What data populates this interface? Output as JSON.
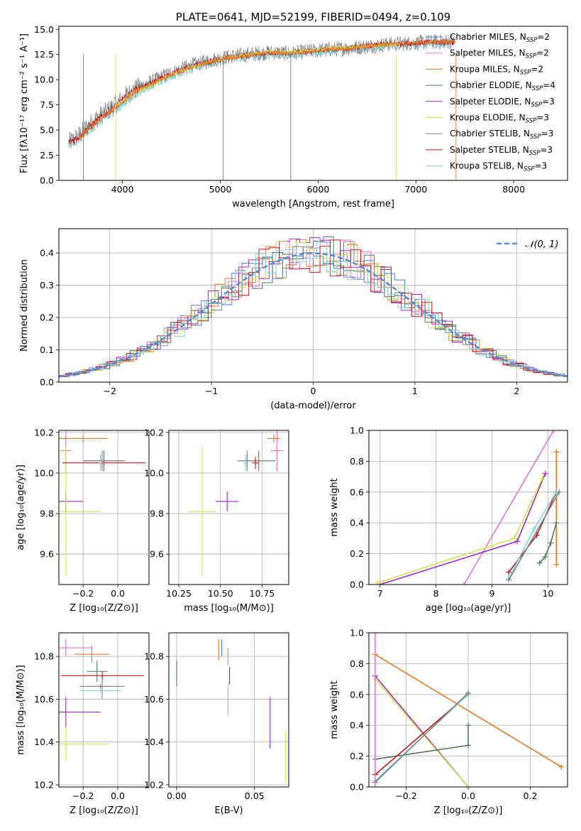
{
  "colors": {
    "chabrier_miles": "#4a7fd0",
    "salpeter_miles": "#e377c2",
    "kroupa_miles": "#e07b29",
    "chabrier_elodie": "#4f7a5a",
    "salpeter_elodie": "#9b2dc4",
    "kroupa_elodie": "#d4e157",
    "chabrier_stelib": "#7f7f7f",
    "salpeter_stelib": "#c0191f",
    "kroupa_stelib": "#7fd3dd",
    "normal": "#5a8ad6",
    "grid": "#b0b0b0"
  },
  "chart_data": [
    {
      "id": "spectrum",
      "type": "line",
      "title": "PLATE=0641, MJD=52199, FIBERID=0494, z=0.109",
      "xlabel": "wavelength [Angstrom, rest frame]",
      "ylabel": "Flux [fλ10⁻¹⁷ erg cm⁻² s⁻¹ A⁻¹]",
      "xlim": [
        3350,
        8550
      ],
      "ylim": [
        0,
        15.3
      ],
      "xticks": [
        4000,
        5000,
        6000,
        7000,
        8000
      ],
      "yticks": [
        0.0,
        2.5,
        5.0,
        7.5,
        10.0,
        12.5,
        15.0
      ],
      "grid": false,
      "legend_position": "top-right",
      "legend": [
        {
          "label": "Chabrier MILES, N",
          "sub": "SSP",
          "tail": "=2",
          "color_key": "chabrier_miles"
        },
        {
          "label": "Salpeter MILES, N",
          "sub": "SSP",
          "tail": "=2",
          "color_key": "salpeter_miles"
        },
        {
          "label": "Kroupa MILES, N",
          "sub": "SSP",
          "tail": "=2",
          "color_key": "kroupa_miles"
        },
        {
          "label": "Chabrier ELODIE, N",
          "sub": "SSP",
          "tail": "=4",
          "color_key": "chabrier_elodie"
        },
        {
          "label": "Salpeter ELODIE, N",
          "sub": "SSP",
          "tail": "=3",
          "color_key": "salpeter_elodie"
        },
        {
          "label": "Kroupa ELODIE, N",
          "sub": "SSP",
          "tail": "=3",
          "color_key": "kroupa_elodie"
        },
        {
          "label": "Chabrier STELIB, N",
          "sub": "SSP",
          "tail": "=3",
          "color_key": "chabrier_stelib"
        },
        {
          "label": "Salpeter STELIB, N",
          "sub": "SSP",
          "tail": "=3",
          "color_key": "salpeter_stelib"
        },
        {
          "label": "Kroupa STELIB, N",
          "sub": "SSP",
          "tail": "=3",
          "color_key": "kroupa_stelib"
        }
      ],
      "series": [
        {
          "name": "Chabrier STELIB",
          "color_key": "chabrier_stelib",
          "x": [
            3450,
            3550,
            3700,
            3850,
            3950,
            4100,
            4300,
            4500,
            4700,
            4900,
            5100,
            5300,
            5500,
            5700,
            5900,
            6100,
            6300,
            6500,
            6700,
            6900,
            7100,
            7300,
            7400
          ],
          "y": [
            3.7,
            4.4,
            5.9,
            6.9,
            7.7,
            8.9,
            9.8,
            10.7,
            11.4,
            11.9,
            12.3,
            12.5,
            12.7,
            12.6,
            12.8,
            13.0,
            13.1,
            13.3,
            13.5,
            13.6,
            13.7,
            13.8,
            13.8
          ]
        },
        {
          "name": "Kroupa STELIB",
          "color_key": "kroupa_stelib",
          "x": [
            3450,
            3550,
            3700,
            3850,
            3950,
            4100,
            4300,
            4500,
            4700,
            4900,
            5100,
            5300,
            5500,
            5700,
            5900,
            6100,
            6300,
            6500,
            6700,
            6900,
            7100,
            7300,
            7400
          ],
          "y": [
            3.6,
            4.1,
            5.4,
            6.5,
            7.1,
            8.5,
            9.4,
            10.4,
            11.1,
            11.7,
            12.1,
            12.3,
            12.6,
            12.5,
            12.7,
            12.9,
            13.0,
            13.2,
            13.4,
            13.5,
            13.6,
            13.6,
            13.6
          ]
        },
        {
          "name": "Salpeter STELIB",
          "color_key": "salpeter_stelib",
          "x": [
            3450,
            3550,
            3700,
            3850,
            3950,
            4100,
            4300,
            4500,
            4700,
            4900,
            5100,
            5300,
            5500,
            5700,
            5900,
            6100,
            6300,
            6500,
            6700,
            6900,
            7100,
            7300,
            7400
          ],
          "y": [
            3.8,
            4.3,
            5.6,
            6.8,
            7.5,
            8.8,
            9.7,
            10.6,
            11.3,
            11.8,
            12.2,
            12.4,
            12.7,
            12.6,
            12.8,
            13.0,
            13.1,
            13.3,
            13.5,
            13.6,
            13.7,
            13.7,
            13.7
          ]
        },
        {
          "name": "Kroupa ELODIE",
          "color_key": "kroupa_elodie",
          "x": [
            3900,
            4100,
            4300,
            4500,
            4700,
            4900,
            5100,
            5300,
            5500,
            5700,
            5900,
            6100,
            6300,
            6500,
            6700,
            6800
          ],
          "y": [
            7.0,
            8.6,
            9.5,
            10.5,
            11.2,
            11.8,
            12.2,
            12.5,
            12.8,
            12.7,
            12.9,
            13.1,
            13.2,
            13.3,
            13.4,
            13.5
          ]
        },
        {
          "name": "Kroupa MILES",
          "color_key": "kroupa_miles",
          "x": [
            3550,
            3700,
            3850,
            3950,
            4100,
            4300,
            4500,
            4700,
            4900,
            5100,
            5300,
            5500,
            5700,
            5900,
            6100,
            6300,
            6500,
            6700,
            6900,
            7100,
            7300,
            7400
          ],
          "y": [
            4.2,
            5.5,
            6.7,
            7.3,
            8.7,
            9.6,
            10.5,
            11.2,
            11.8,
            12.2,
            12.4,
            12.7,
            12.6,
            12.8,
            13.0,
            13.1,
            13.3,
            13.5,
            13.6,
            13.7,
            13.8,
            13.8
          ]
        }
      ]
    },
    {
      "id": "residuals",
      "type": "line",
      "xlabel": "(data-model)/error",
      "ylabel": "Normed distribution",
      "xlim": [
        -2.5,
        2.5
      ],
      "ylim": [
        0,
        0.475
      ],
      "xticks": [
        -2,
        -1,
        0,
        1,
        2
      ],
      "yticks": [
        0.0,
        0.1,
        0.2,
        0.3,
        0.4
      ],
      "grid": true,
      "legend_position": "top-right",
      "legend_label": "𝒩(0, 1)",
      "normal": {
        "mu": 0,
        "sigma": 1
      }
    },
    {
      "id": "age_vs_Z",
      "type": "scatter",
      "xlabel": "Z [log₁₀(Z/Z⊙)]",
      "ylabel": "age  [log₁₀(age/yr)]",
      "xlim": [
        -0.34,
        0.18
      ],
      "ylim": [
        9.45,
        10.21
      ],
      "xticks": [
        -0.2,
        0.0
      ],
      "yticks": [
        9.6,
        9.8,
        10.0,
        10.2
      ],
      "grid": true,
      "points": [
        {
          "color_key": "chabrier_miles",
          "x": -0.1,
          "y": 10.06,
          "xerr": 0.01,
          "yerr": 0.03
        },
        {
          "color_key": "salpeter_miles",
          "x": -0.3,
          "y": 10.11,
          "xerr": 0.03,
          "yerr": 0.1
        },
        {
          "color_key": "kroupa_miles",
          "x": -0.2,
          "y": 10.17,
          "xerr": 0.14,
          "yerr": 0.02
        },
        {
          "color_key": "chabrier_elodie",
          "x": -0.08,
          "y": 10.06,
          "xerr": 0.12,
          "yerr": 0.05
        },
        {
          "color_key": "salpeter_elodie",
          "x": -0.3,
          "y": 9.86,
          "xerr": 0.1,
          "yerr": 0.05
        },
        {
          "color_key": "kroupa_elodie",
          "x": -0.3,
          "y": 9.81,
          "xerr": 0.2,
          "yerr": 0.32
        },
        {
          "color_key": "chabrier_stelib",
          "x": -0.09,
          "y": 10.06,
          "xerr": 0.1,
          "yerr": 0.05
        },
        {
          "color_key": "salpeter_stelib",
          "x": -0.08,
          "y": 10.05,
          "xerr": 0.24,
          "yerr": 0.01
        },
        {
          "color_key": "kroupa_stelib",
          "x": -0.1,
          "y": 10.05,
          "xerr": 0.01,
          "yerr": 0.04
        }
      ]
    },
    {
      "id": "age_vs_mass",
      "type": "scatter",
      "xlabel": "mass [log₁₀(M/M⊙)]",
      "xlim": [
        10.19,
        10.91
      ],
      "ylim": [
        9.45,
        10.21
      ],
      "xticks": [
        10.25,
        10.5,
        10.75
      ],
      "yticks": [
        9.6,
        9.8,
        10.0,
        10.2
      ],
      "grid": true,
      "points": [
        {
          "color_key": "chabrier_miles",
          "x": 10.66,
          "y": 10.06,
          "xerr": 0.01,
          "yerr": 0.03
        },
        {
          "color_key": "salpeter_miles",
          "x": 10.84,
          "y": 10.11,
          "xerr": 0.04,
          "yerr": 0.1
        },
        {
          "color_key": "kroupa_miles",
          "x": 10.82,
          "y": 10.17,
          "xerr": 0.04,
          "yerr": 0.02
        },
        {
          "color_key": "chabrier_elodie",
          "x": 10.73,
          "y": 10.06,
          "xerr": 0.1,
          "yerr": 0.05
        },
        {
          "color_key": "salpeter_elodie",
          "x": 10.54,
          "y": 9.86,
          "xerr": 0.07,
          "yerr": 0.05
        },
        {
          "color_key": "kroupa_elodie",
          "x": 10.39,
          "y": 9.81,
          "xerr": 0.08,
          "yerr": 0.32
        },
        {
          "color_key": "chabrier_stelib",
          "x": 10.66,
          "y": 10.06,
          "xerr": 0.06,
          "yerr": 0.05
        },
        {
          "color_key": "salpeter_stelib",
          "x": 10.71,
          "y": 10.05,
          "xerr": 0.02,
          "yerr": 0.03
        },
        {
          "color_key": "kroupa_stelib",
          "x": 10.65,
          "y": 10.05,
          "xerr": 0.01,
          "yerr": 0.04
        }
      ]
    },
    {
      "id": "weight_vs_age",
      "type": "line",
      "xlabel": "age  [log₁₀(age/yr)]",
      "ylabel": "mass weight",
      "xlim": [
        6.8,
        10.35
      ],
      "ylim": [
        0,
        1.0
      ],
      "xticks": [
        7,
        8,
        9,
        10
      ],
      "yticks": [
        0.0,
        0.2,
        0.4,
        0.6,
        0.8,
        1.0
      ],
      "grid": true,
      "series": [
        {
          "color_key": "salpeter_miles",
          "x": [
            8.5,
            10.1
          ],
          "y": [
            0.0,
            1.0
          ]
        },
        {
          "color_key": "kroupa_miles",
          "x": [
            10.15,
            10.15
          ],
          "y": [
            0.13,
            0.86
          ]
        },
        {
          "color_key": "salpeter_elodie",
          "x": [
            7.0,
            9.45,
            9.95
          ],
          "y": [
            0.0,
            0.28,
            0.72
          ]
        },
        {
          "color_key": "kroupa_elodie",
          "x": [
            6.95,
            9.4,
            9.9
          ],
          "y": [
            0.01,
            0.3,
            0.69
          ]
        },
        {
          "color_key": "chabrier_elodie",
          "x": [
            9.85,
            9.95,
            10.05,
            10.15
          ],
          "y": [
            0.14,
            0.18,
            0.27,
            0.4
          ]
        },
        {
          "color_key": "salpeter_stelib",
          "x": [
            9.3,
            9.8,
            10.15
          ],
          "y": [
            0.08,
            0.32,
            0.6
          ]
        },
        {
          "color_key": "kroupa_stelib",
          "x": [
            9.3,
            9.75,
            10.15
          ],
          "y": [
            0.04,
            0.36,
            0.6
          ]
        },
        {
          "color_key": "chabrier_stelib",
          "x": [
            9.3,
            10.2
          ],
          "y": [
            0.03,
            0.6
          ]
        }
      ]
    },
    {
      "id": "mass_vs_Z",
      "type": "scatter",
      "xlabel": "Z [log₁₀(Z/Z⊙)]",
      "ylabel": "mass [log₁₀(M/M⊙)]",
      "xlim": [
        -0.34,
        0.18
      ],
      "ylim": [
        10.19,
        10.91
      ],
      "xticks": [
        -0.2,
        0.0
      ],
      "yticks": [
        10.2,
        10.4,
        10.6,
        10.8
      ],
      "grid": true,
      "points": [
        {
          "color_key": "chabrier_miles",
          "x": -0.1,
          "y": 10.66,
          "xerr": 0.01,
          "yerr": 0.01
        },
        {
          "color_key": "salpeter_miles",
          "x": -0.3,
          "y": 10.84,
          "xerr": 0.15,
          "yerr": 0.04
        },
        {
          "color_key": "kroupa_miles",
          "x": -0.15,
          "y": 10.81,
          "xerr": 0.1,
          "yerr": 0.04
        },
        {
          "color_key": "chabrier_elodie",
          "x": -0.12,
          "y": 10.73,
          "xerr": 0.06,
          "yerr": 0.05
        },
        {
          "color_key": "salpeter_elodie",
          "x": -0.3,
          "y": 10.54,
          "xerr": 0.2,
          "yerr": 0.07
        },
        {
          "color_key": "kroupa_elodie",
          "x": -0.3,
          "y": 10.39,
          "xerr": 0.25,
          "yerr": 0.08
        },
        {
          "color_key": "chabrier_stelib",
          "x": -0.09,
          "y": 10.66,
          "xerr": 0.13,
          "yerr": 0.06
        },
        {
          "color_key": "salpeter_stelib",
          "x": -0.09,
          "y": 10.71,
          "xerr": 0.24,
          "yerr": 0.02
        },
        {
          "color_key": "kroupa_stelib",
          "x": -0.1,
          "y": 10.64,
          "xerr": 0.12,
          "yerr": 0.01
        }
      ]
    },
    {
      "id": "mass_vs_ebv",
      "type": "scatter",
      "xlabel": "E(B-V)",
      "xlim": [
        -0.005,
        0.072
      ],
      "ylim": [
        10.19,
        10.91
      ],
      "xticks": [
        0.0,
        0.05
      ],
      "yticks": [
        10.2,
        10.4,
        10.6,
        10.8
      ],
      "grid": true,
      "points": [
        {
          "color_key": "chabrier_miles",
          "x": 0.029,
          "y": 10.84,
          "xerr": 0.0,
          "yerr": 0.04
        },
        {
          "color_key": "salpeter_miles",
          "x": 0.033,
          "y": 10.8,
          "xerr": 0.0,
          "yerr": 0.04
        },
        {
          "color_key": "kroupa_miles",
          "x": 0.027,
          "y": 10.83,
          "xerr": 0.0,
          "yerr": 0.05
        },
        {
          "color_key": "chabrier_elodie",
          "x": 0.0,
          "y": 10.72,
          "xerr": 0.0,
          "yerr": 0.06
        },
        {
          "color_key": "salpeter_elodie",
          "x": 0.06,
          "y": 10.49,
          "xerr": 0.0,
          "yerr": 0.12
        },
        {
          "color_key": "kroupa_elodie",
          "x": 0.07,
          "y": 10.33,
          "xerr": 0.0,
          "yerr": 0.12
        },
        {
          "color_key": "chabrier_stelib",
          "x": 0.033,
          "y": 10.6,
          "xerr": 0.0,
          "yerr": 0.05
        },
        {
          "color_key": "salpeter_stelib",
          "x": 0.034,
          "y": 10.71,
          "xerr": 0.0,
          "yerr": 0.04
        },
        {
          "color_key": "kroupa_stelib",
          "x": 0.033,
          "y": 10.6,
          "xerr": 0.0,
          "yerr": 0.08
        }
      ]
    },
    {
      "id": "weight_vs_Z",
      "type": "line",
      "xlabel": "Z [log₁₀(Z/Z⊙)]",
      "ylabel": "mass weight",
      "xlim": [
        -0.32,
        0.32
      ],
      "ylim": [
        0,
        1.0
      ],
      "xticks": [
        -0.2,
        0.0,
        0.2
      ],
      "yticks": [
        0.0,
        0.2,
        0.4,
        0.6,
        0.8,
        1.0
      ],
      "grid": true,
      "series": [
        {
          "color_key": "kroupa_miles",
          "x": [
            -0.3,
            0.3
          ],
          "y": [
            0.86,
            0.13
          ]
        },
        {
          "color_key": "salpeter_elodie",
          "x": [
            -0.3,
            0.0
          ],
          "y": [
            0.72,
            0.0
          ]
        },
        {
          "color_key": "kroupa_elodie",
          "x": [
            -0.3,
            0.0
          ],
          "y": [
            0.7,
            0.0
          ]
        },
        {
          "color_key": "chabrier_elodie",
          "x": [
            -0.3,
            0.0,
            0.0
          ],
          "y": [
            0.18,
            0.27,
            0.4
          ]
        },
        {
          "color_key": "salpeter_stelib",
          "x": [
            -0.3,
            0.0
          ],
          "y": [
            0.08,
            0.6
          ]
        },
        {
          "color_key": "kroupa_stelib",
          "x": [
            -0.3,
            0.0
          ],
          "y": [
            0.04,
            0.6
          ]
        },
        {
          "color_key": "chabrier_stelib",
          "x": [
            -0.3,
            0.0
          ],
          "y": [
            0.03,
            0.61
          ]
        },
        {
          "color_key": "salpeter_miles",
          "x": [
            -0.3,
            -0.3
          ],
          "y": [
            0.0,
            1.0
          ]
        }
      ]
    }
  ]
}
